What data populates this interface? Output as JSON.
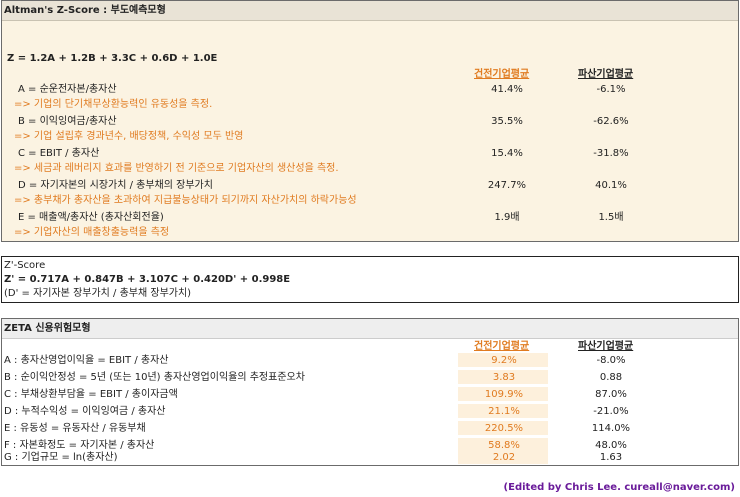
{
  "altman": {
    "title": "Altman's Z-Score : 부도예측모형",
    "formula": "Z = 1.2A + 1.2B + 3.3C + 0.6D + 1.0E",
    "col_healthy": "건전기업평균",
    "col_bankrupt": "파산기업평균",
    "rows": [
      {
        "label": "A = 순운전자본/총자산",
        "healthy": "41.4%",
        "bankrupt": "-6.1%",
        "note": "=> 기업의 단기채무상환능력인 유동성을 측정."
      },
      {
        "label": "B = 이익잉여금/총자산",
        "healthy": "35.5%",
        "bankrupt": "-62.6%",
        "note": "=> 기업 설립후 경과년수, 배당정책, 수익성 모두 반영"
      },
      {
        "label": "C = EBIT / 총자산",
        "healthy": "15.4%",
        "bankrupt": "-31.8%",
        "note": "=> 세금과 레버리지 효과를 반영하기 전 기준으로 기업자산의 생산성을 측정."
      },
      {
        "label": "D = 자기자본의 시장가치 / 총부채의 장부가치",
        "healthy": "247.7%",
        "bankrupt": "40.1%",
        "note": "=> 총부채가 총자산을 초과하여 지급불능상태가 되기까지 자산가치의 하락가능성"
      },
      {
        "label": "E = 매출액/총자산 (총자산회전율)",
        "healthy": "1.9배",
        "bankrupt": "1.5배",
        "note": "=> 기업자산의 매출창출능력을 측정"
      }
    ]
  },
  "zprime": {
    "title": "Z'-Score",
    "formula": "Z' = 0.717A + 0.847B + 3.107C + 0.420D' + 0.998E",
    "note": "(D' = 자기자본 장부가치 / 총부채 장부가치)"
  },
  "zeta": {
    "title": "ZETA 신용위험모형",
    "col_healthy": "건전기업평균",
    "col_bankrupt": "파산기업평균",
    "rows": [
      {
        "label": "A : 총자산영업이익율 = EBIT / 총자산",
        "healthy": "9.2%",
        "bankrupt": "-8.0%"
      },
      {
        "label": "B : 순이익안정성 = 5년 (또는 10년) 총자산영업이익율의 추정표준오차",
        "healthy": "3.83",
        "bankrupt": "0.88"
      },
      {
        "label": "C : 부채상환부담율 = EBIT / 총이자금액",
        "healthy": "109.9%",
        "bankrupt": "87.0%"
      },
      {
        "label": "D : 누적수익성 = 이익잉여금 / 총자산",
        "healthy": "21.1%",
        "bankrupt": "-21.0%"
      },
      {
        "label": "E : 유동성 = 유동자산 / 유동부채",
        "healthy": "220.5%",
        "bankrupt": "114.0%"
      },
      {
        "label": "F : 자본화정도 = 자기자본 / 총자산",
        "healthy": "58.8%",
        "bankrupt": "48.0%"
      },
      {
        "label": "G : 기업규모 = ln(총자산)",
        "healthy": "2.02",
        "bankrupt": "1.63"
      }
    ]
  },
  "credit": "(Edited by Chris Lee. cureall@naver.com)"
}
